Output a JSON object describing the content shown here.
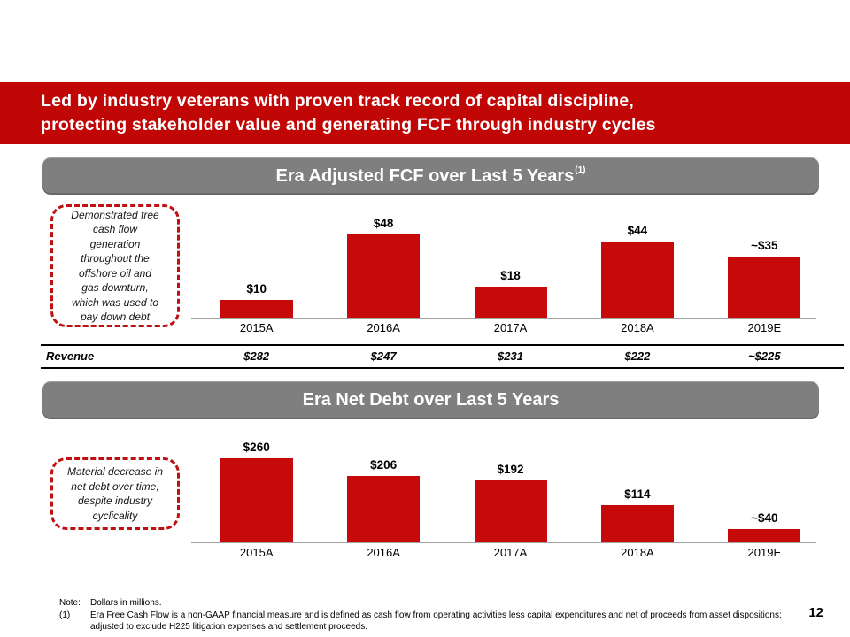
{
  "slide": {
    "colors": {
      "accent_red": "#C10606",
      "bar_red": "#C60909",
      "banner_gray": "#7F7F7F",
      "callout_border_red": "#BE1010"
    },
    "header": {
      "line1": "Led by industry veterans with proven track record of capital discipline,",
      "line2": "protecting stakeholder value and generating FCF through industry cycles"
    },
    "page_number": "12"
  },
  "fcf_section": {
    "title": "Era Adjusted FCF over Last 5 Years",
    "title_superscript": "(1)",
    "callout": "Demonstrated free\ncash flow\ngeneration\nthroughout the\noffshore oil and\ngas downturn,\nwhich was used to\npay down debt"
  },
  "revenue_row": {
    "label": "Revenue",
    "values": [
      "$282",
      "$247",
      "$231",
      "$222",
      "~$225"
    ]
  },
  "netdebt_section": {
    "title": "Era Net Debt over Last 5 Years",
    "callout": "Material decrease in\nnet debt over time,\ndespite industry\ncyclicality"
  },
  "footnotes": {
    "note_label": "Note:",
    "note_text": "Dollars in millions.",
    "fn1_label": "(1)",
    "fn1_text": "Era Free Cash Flow is a non-GAAP financial measure and is defined as cash flow from operating activities less capital expenditures and net of proceeds from asset dispositions; adjusted to exclude H225 litigation expenses and settlement proceeds."
  },
  "chart_data": [
    {
      "type": "bar",
      "title": "Era Adjusted FCF over Last 5 Years (1)",
      "categories": [
        "2015A",
        "2016A",
        "2017A",
        "2018A",
        "2019E"
      ],
      "values": [
        10,
        48,
        18,
        44,
        35
      ],
      "labels": [
        "$10",
        "$48",
        "$18",
        "$44",
        "~$35"
      ],
      "ylim": [
        0,
        48
      ],
      "grid": false,
      "legend": false
    },
    {
      "type": "bar",
      "title": "Era Net Debt over Last 5 Years",
      "categories": [
        "2015A",
        "2016A",
        "2017A",
        "2018A",
        "2019E"
      ],
      "values": [
        260,
        206,
        192,
        114,
        40
      ],
      "labels": [
        "$260",
        "$206",
        "$192",
        "$114",
        "~$40"
      ],
      "ylim": [
        0,
        260
      ],
      "grid": false,
      "legend": false
    }
  ]
}
